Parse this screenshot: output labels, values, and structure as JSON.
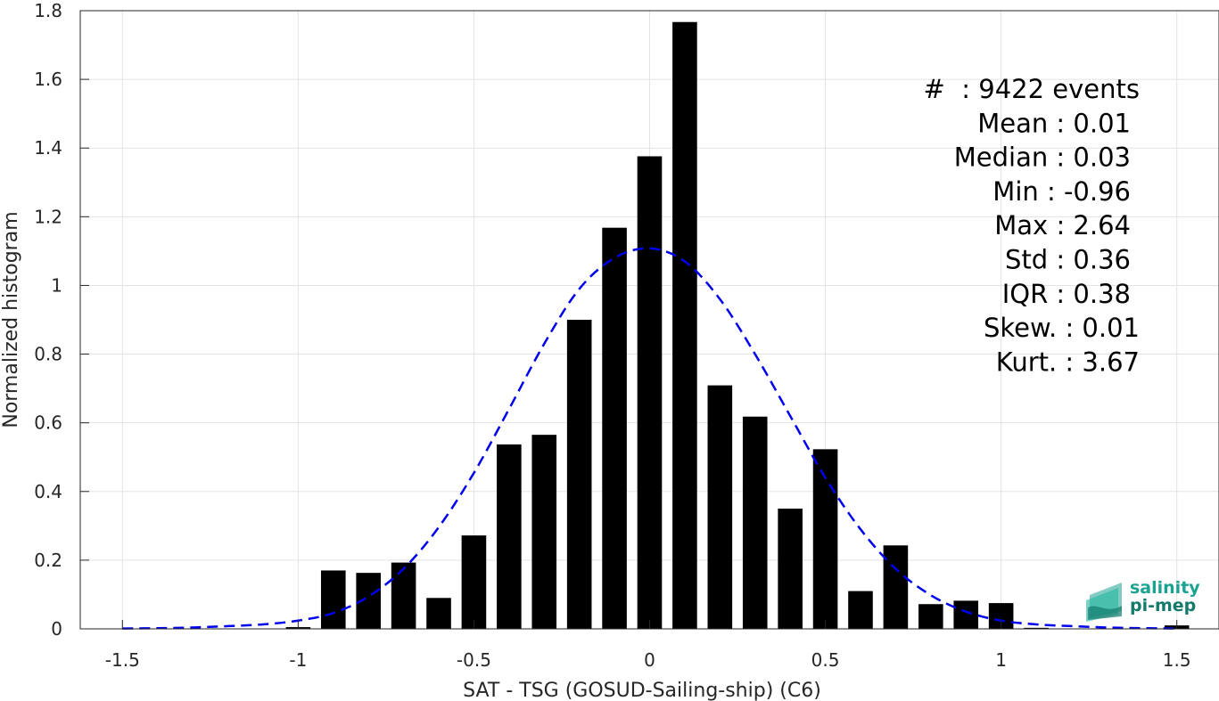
{
  "chart_data": {
    "type": "bar",
    "xlabel": "SAT - TSG (GOSUD-Sailing-ship) (C6)",
    "ylabel": "Normalized histogram",
    "xlim": [
      -1.62,
      1.62
    ],
    "ylim": [
      0,
      1.8
    ],
    "xticks": [
      -1.5,
      -1,
      -0.5,
      0,
      0.5,
      1,
      1.5
    ],
    "xtick_labels": [
      "-1.5",
      "-1",
      "-0.5",
      "0",
      "0.5",
      "1",
      "1.5"
    ],
    "yticks": [
      0,
      0.2,
      0.4,
      0.6,
      0.8,
      1,
      1.2,
      1.4,
      1.6,
      1.8
    ],
    "ytick_labels": [
      "0",
      "0.2",
      "0.4",
      "0.6",
      "0.8",
      "1",
      "1.2",
      "1.4",
      "1.6",
      "1.8"
    ],
    "grid": true,
    "bar_color": "#000000",
    "bar_width": 0.07,
    "bins": [
      {
        "x": -1.0,
        "y": 0.005
      },
      {
        "x": -0.9,
        "y": 0.17
      },
      {
        "x": -0.8,
        "y": 0.163
      },
      {
        "x": -0.7,
        "y": 0.193
      },
      {
        "x": -0.6,
        "y": 0.09
      },
      {
        "x": -0.5,
        "y": 0.272
      },
      {
        "x": -0.4,
        "y": 0.537
      },
      {
        "x": -0.3,
        "y": 0.565
      },
      {
        "x": -0.2,
        "y": 0.9
      },
      {
        "x": -0.1,
        "y": 1.168
      },
      {
        "x": 0.0,
        "y": 1.376
      },
      {
        "x": 0.1,
        "y": 1.767
      },
      {
        "x": 0.2,
        "y": 0.709
      },
      {
        "x": 0.3,
        "y": 0.618
      },
      {
        "x": 0.4,
        "y": 0.35
      },
      {
        "x": 0.5,
        "y": 0.523
      },
      {
        "x": 0.6,
        "y": 0.11
      },
      {
        "x": 0.7,
        "y": 0.243
      },
      {
        "x": 0.8,
        "y": 0.072
      },
      {
        "x": 0.9,
        "y": 0.082
      },
      {
        "x": 1.0,
        "y": 0.075
      },
      {
        "x": 1.1,
        "y": 0.003
      },
      {
        "x": 1.5,
        "y": 0.01
      }
    ],
    "fit_curve": {
      "style": "dashed",
      "color": "#0000ee",
      "points": [
        [
          -1.5,
          0.001
        ],
        [
          -1.4,
          0.002
        ],
        [
          -1.3,
          0.004
        ],
        [
          -1.2,
          0.008
        ],
        [
          -1.1,
          0.013
        ],
        [
          -1.0,
          0.024
        ],
        [
          -0.9,
          0.046
        ],
        [
          -0.8,
          0.094
        ],
        [
          -0.7,
          0.175
        ],
        [
          -0.6,
          0.296
        ],
        [
          -0.5,
          0.454
        ],
        [
          -0.4,
          0.64
        ],
        [
          -0.3,
          0.83
        ],
        [
          -0.2,
          0.99
        ],
        [
          -0.1,
          1.08
        ],
        [
          0.0,
          1.108
        ],
        [
          0.1,
          1.07
        ],
        [
          0.2,
          0.96
        ],
        [
          0.3,
          0.8
        ],
        [
          0.4,
          0.62
        ],
        [
          0.5,
          0.44
        ],
        [
          0.6,
          0.29
        ],
        [
          0.7,
          0.175
        ],
        [
          0.8,
          0.098
        ],
        [
          0.9,
          0.05
        ],
        [
          1.0,
          0.024
        ],
        [
          1.1,
          0.013
        ],
        [
          1.2,
          0.008
        ],
        [
          1.3,
          0.004
        ],
        [
          1.4,
          0.002
        ],
        [
          1.5,
          0.001
        ]
      ]
    },
    "annotations": [
      "#  : 9422 events",
      "Mean : 0.01",
      "Median : 0.03",
      "Min : -0.96",
      "Max : 2.64",
      "Std : 0.36",
      "IQR : 0.38",
      "Skew. : 0.01",
      "Kurt. : 3.67"
    ]
  },
  "logo": {
    "line1": "salinity",
    "line2": "pi-mep",
    "color_light": "#1aa390",
    "color_dark": "#147a6c"
  }
}
